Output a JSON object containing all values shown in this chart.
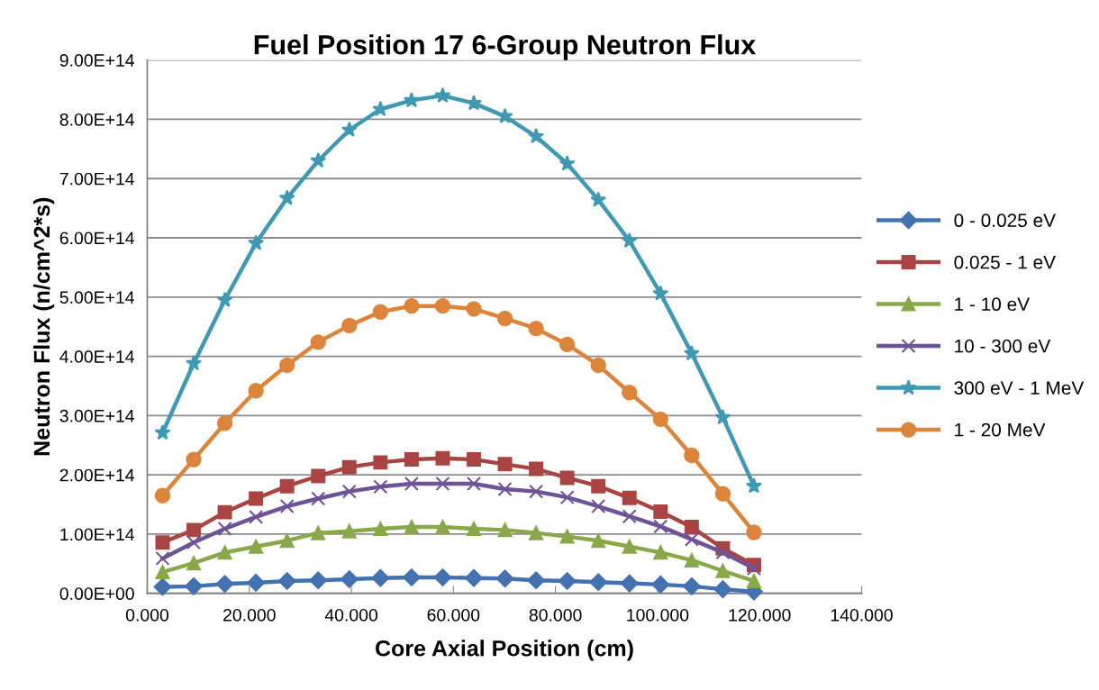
{
  "chart_data": {
    "type": "line",
    "title": "Fuel Position 17 6-Group Neutron Flux",
    "xlabel": "Core Axial Position (cm)",
    "ylabel": "Neutron Flux (n/cm^2*s)",
    "x": [
      3.0,
      9.1,
      15.2,
      21.3,
      27.4,
      33.5,
      39.6,
      45.7,
      51.8,
      57.9,
      64.0,
      70.1,
      76.2,
      82.3,
      88.4,
      94.5,
      100.6,
      106.7,
      112.8,
      118.9
    ],
    "series": [
      {
        "name": "0 - 0.025 eV",
        "color": "#4472b0",
        "marker": "diamond",
        "values": [
          11000000000000.0,
          12000000000000.0,
          16000000000000.0,
          18000000000000.0,
          21000000000000.0,
          22000000000000.0,
          24000000000000.0,
          26000000000000.0,
          27000000000000.0,
          27000000000000.0,
          26000000000000.0,
          25000000000000.0,
          22000000000000.0,
          21000000000000.0,
          19000000000000.0,
          17000000000000.0,
          15000000000000.0,
          12000000000000.0,
          7000000000000.0,
          3000000000000.0
        ]
      },
      {
        "name": "0.025 - 1 eV",
        "color": "#aa4442",
        "marker": "square",
        "values": [
          86000000000000.0,
          107000000000000.0,
          137000000000000.0,
          160000000000000.0,
          181000000000000.0,
          198000000000000.0,
          213000000000000.0,
          221000000000000.0,
          226000000000000.0,
          228000000000000.0,
          226000000000000.0,
          218000000000000.0,
          210000000000000.0,
          195000000000000.0,
          181000000000000.0,
          161000000000000.0,
          138000000000000.0,
          112000000000000.0,
          76000000000000.0,
          48000000000000.0
        ]
      },
      {
        "name": "1 - 10 eV",
        "color": "#88a84a",
        "marker": "triangle",
        "values": [
          36000000000000.0,
          51000000000000.0,
          69000000000000.0,
          79000000000000.0,
          89000000000000.0,
          102000000000000.0,
          105000000000000.0,
          109000000000000.0,
          112000000000000.0,
          112000000000000.0,
          109000000000000.0,
          107000000000000.0,
          102000000000000.0,
          96000000000000.0,
          89000000000000.0,
          79000000000000.0,
          69000000000000.0,
          56000000000000.0,
          38000000000000.0,
          21000000000000.0
        ]
      },
      {
        "name": "10 - 300 eV",
        "color": "#6e5497",
        "marker": "cross",
        "values": [
          59000000000000.0,
          86000000000000.0,
          109000000000000.0,
          129000000000000.0,
          147000000000000.0,
          160000000000000.0,
          172000000000000.0,
          180000000000000.0,
          185000000000000.0,
          185000000000000.0,
          185000000000000.0,
          176000000000000.0,
          172000000000000.0,
          162000000000000.0,
          147000000000000.0,
          130000000000000.0,
          113000000000000.0,
          91000000000000.0,
          69000000000000.0,
          42000000000000.0
        ]
      },
      {
        "name": "300 eV - 1 MeV",
        "color": "#3f99b2",
        "marker": "star",
        "values": [
          271000000000000.0,
          388000000000000.0,
          495000000000000.0,
          591000000000000.0,
          667000000000000.0,
          730000000000000.0,
          782000000000000.0,
          817000000000000.0,
          832000000000000.0,
          840000000000000.0,
          827000000000000.0,
          805000000000000.0,
          771000000000000.0,
          725000000000000.0,
          664000000000000.0,
          595000000000000.0,
          506000000000000.0,
          405000000000000.0,
          297000000000000.0,
          181000000000000.0
        ]
      },
      {
        "name": "1 - 20 MeV",
        "color": "#dd843b",
        "marker": "circle",
        "values": [
          165000000000000.0,
          226000000000000.0,
          287000000000000.0,
          342000000000000.0,
          385000000000000.0,
          424000000000000.0,
          452000000000000.0,
          475000000000000.0,
          485000000000000.0,
          485000000000000.0,
          480000000000000.0,
          464000000000000.0,
          447000000000000.0,
          420000000000000.0,
          385000000000000.0,
          339000000000000.0,
          294000000000000.0,
          233000000000000.0,
          168000000000000.0,
          103000000000000.0
        ]
      }
    ],
    "xlim": [
      0,
      140
    ],
    "xticks": [
      {
        "value": 0,
        "label": "0.000"
      },
      {
        "value": 20,
        "label": "20.000"
      },
      {
        "value": 40,
        "label": "40.000"
      },
      {
        "value": 60,
        "label": "60.000"
      },
      {
        "value": 80,
        "label": "80.000"
      },
      {
        "value": 100,
        "label": "100.000"
      },
      {
        "value": 120,
        "label": "120.000"
      },
      {
        "value": 140,
        "label": "140.000"
      }
    ],
    "ylim": [
      0,
      900000000000000.0
    ],
    "yticks": [
      {
        "value": 0,
        "label": "0.00E+00"
      },
      {
        "value": 100000000000000.0,
        "label": "1.00E+14"
      },
      {
        "value": 200000000000000.0,
        "label": "2.00E+14"
      },
      {
        "value": 300000000000000.0,
        "label": "3.00E+14"
      },
      {
        "value": 400000000000000.0,
        "label": "4.00E+14"
      },
      {
        "value": 500000000000000.0,
        "label": "5.00E+14"
      },
      {
        "value": 600000000000000.0,
        "label": "6.00E+14"
      },
      {
        "value": 700000000000000.0,
        "label": "7.00E+14"
      },
      {
        "value": 800000000000000.0,
        "label": "8.00E+14"
      },
      {
        "value": 900000000000000.0,
        "label": "9.00E+14"
      }
    ],
    "grid": "y",
    "legend": "right",
    "line_style": "solid"
  }
}
